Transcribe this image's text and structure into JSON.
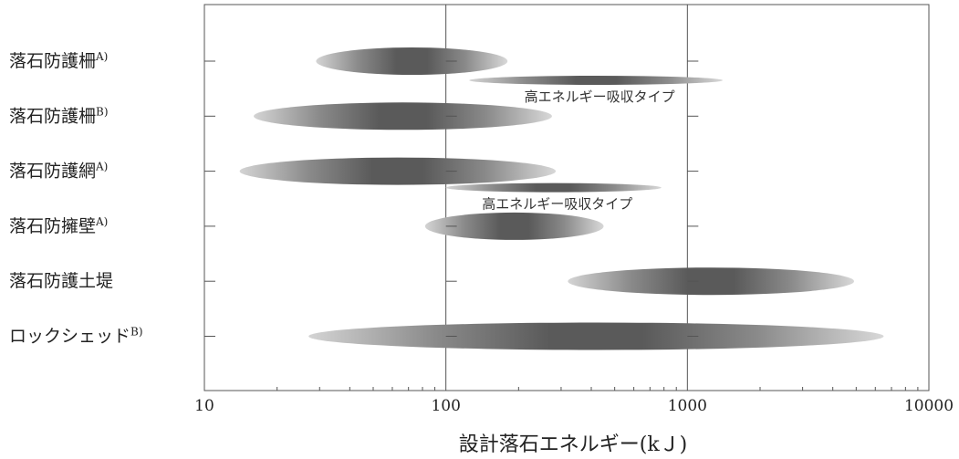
{
  "chart_data": {
    "type": "range",
    "xlabel": "設計落石エネルギー(kＪ)",
    "xscale": "log",
    "xlim": [
      10,
      10000
    ],
    "xticks": [
      "10",
      "100",
      "1000",
      "10000"
    ],
    "grid": "vertical lines at 100 and 1000",
    "categories": [
      {
        "label": "落石防護柵",
        "sup": "A)"
      },
      {
        "label": "落石防護柵",
        "sup": "B)"
      },
      {
        "label": "落石防護網",
        "sup": "A)"
      },
      {
        "label": "落石防擁壁",
        "sup": "A)"
      },
      {
        "label": "落石防護土堤",
        "sup": ""
      },
      {
        "label": "ロックシェッド",
        "sup": "B)"
      }
    ],
    "ranges": [
      {
        "category": 0,
        "low": 29,
        "high": 180
      },
      {
        "category": 0,
        "low": 125,
        "high": 1400,
        "note": "高エネルギー吸収タイプ",
        "sub": "upper-right"
      },
      {
        "category": 1,
        "low": 16,
        "high": 275
      },
      {
        "category": 2,
        "low": 14,
        "high": 285
      },
      {
        "category": 2,
        "low": 100,
        "high": 780,
        "note": "高エネルギー吸収タイプ",
        "sub": "lower-right"
      },
      {
        "category": 3,
        "low": 82,
        "high": 450
      },
      {
        "category": 4,
        "low": 320,
        "high": 4900
      },
      {
        "category": 5,
        "low": 27,
        "high": 6500
      }
    ]
  }
}
